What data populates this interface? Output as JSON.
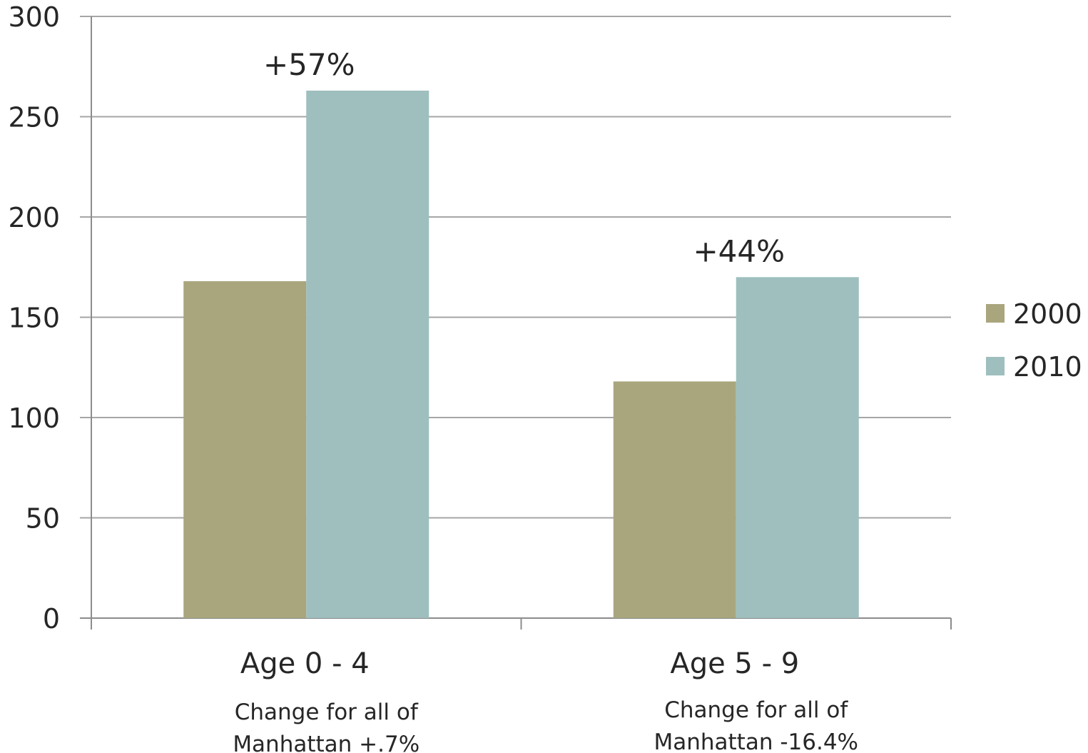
{
  "chart_data": {
    "type": "bar",
    "categories": [
      "Age 0 - 4",
      "Age 5 - 9"
    ],
    "series": [
      {
        "name": "2000",
        "values": [
          168,
          118
        ],
        "color": "#a9a67e"
      },
      {
        "name": "2010",
        "values": [
          263,
          170
        ],
        "color": "#9ebfbe"
      }
    ],
    "ylim": [
      0,
      300
    ],
    "yticks": [
      0,
      50,
      100,
      150,
      200,
      250,
      300
    ],
    "grid": true,
    "legend_position": "right",
    "annotations": [
      "+57%",
      "+44%"
    ],
    "category_notes": [
      [
        "Change for all of",
        "Manhattan +.7%"
      ],
      [
        "Change for all of",
        "Manhattan -16.4%"
      ]
    ],
    "title": "",
    "xlabel": "",
    "ylabel": ""
  }
}
